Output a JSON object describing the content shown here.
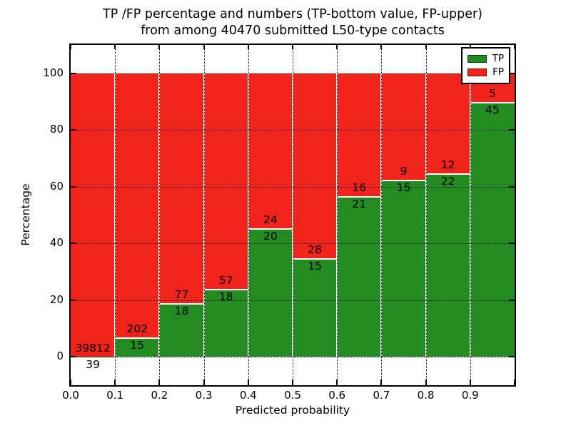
{
  "figure": {
    "title_line1": "TP /FP percentage and numbers (TP-bottom value, FP-upper)",
    "title_line2": "from among 40470 submitted L50-type contacts",
    "xlabel": "Predicted probability",
    "ylabel": "Percentage"
  },
  "legend": {
    "items": [
      {
        "label": "TP",
        "color": "#228B22"
      },
      {
        "label": "FP",
        "color": "#F2231A"
      }
    ],
    "position": "upper right"
  },
  "chart_data": {
    "type": "bar",
    "stacked": true,
    "stack_mode": "percent",
    "title": "TP /FP percentage and numbers (TP-bottom value, FP-upper) from among 40470 submitted L50-type contacts",
    "xlabel": "Predicted probability",
    "ylabel": "Percentage",
    "total_submitted_contacts": 40470,
    "bin_edges": [
      0.0,
      0.1,
      0.2,
      0.3,
      0.4,
      0.5,
      0.6,
      0.7,
      0.8,
      0.9,
      1.0
    ],
    "x_tick_labels": [
      "0.0",
      "0.1",
      "0.2",
      "0.3",
      "0.4",
      "0.5",
      "0.6",
      "0.7",
      "0.8",
      "0.9"
    ],
    "y_ticks": [
      0,
      20,
      40,
      60,
      80,
      100
    ],
    "y_tick_labels": [
      "0",
      "20",
      "40",
      "60",
      "80",
      "100"
    ],
    "ylim": [
      -10,
      110
    ],
    "grid": true,
    "series": [
      {
        "name": "TP",
        "color": "#228B22",
        "values": [
          39,
          15,
          18,
          18,
          20,
          15,
          21,
          15,
          22,
          45
        ]
      },
      {
        "name": "FP",
        "color": "#F2231A",
        "values": [
          39812,
          202,
          77,
          57,
          24,
          28,
          16,
          9,
          12,
          5
        ]
      }
    ],
    "bar_value_labels": "Each bar shows TP count below the green/red boundary and FP count above it; bar heights are TP and FP percentages of the bin total"
  }
}
